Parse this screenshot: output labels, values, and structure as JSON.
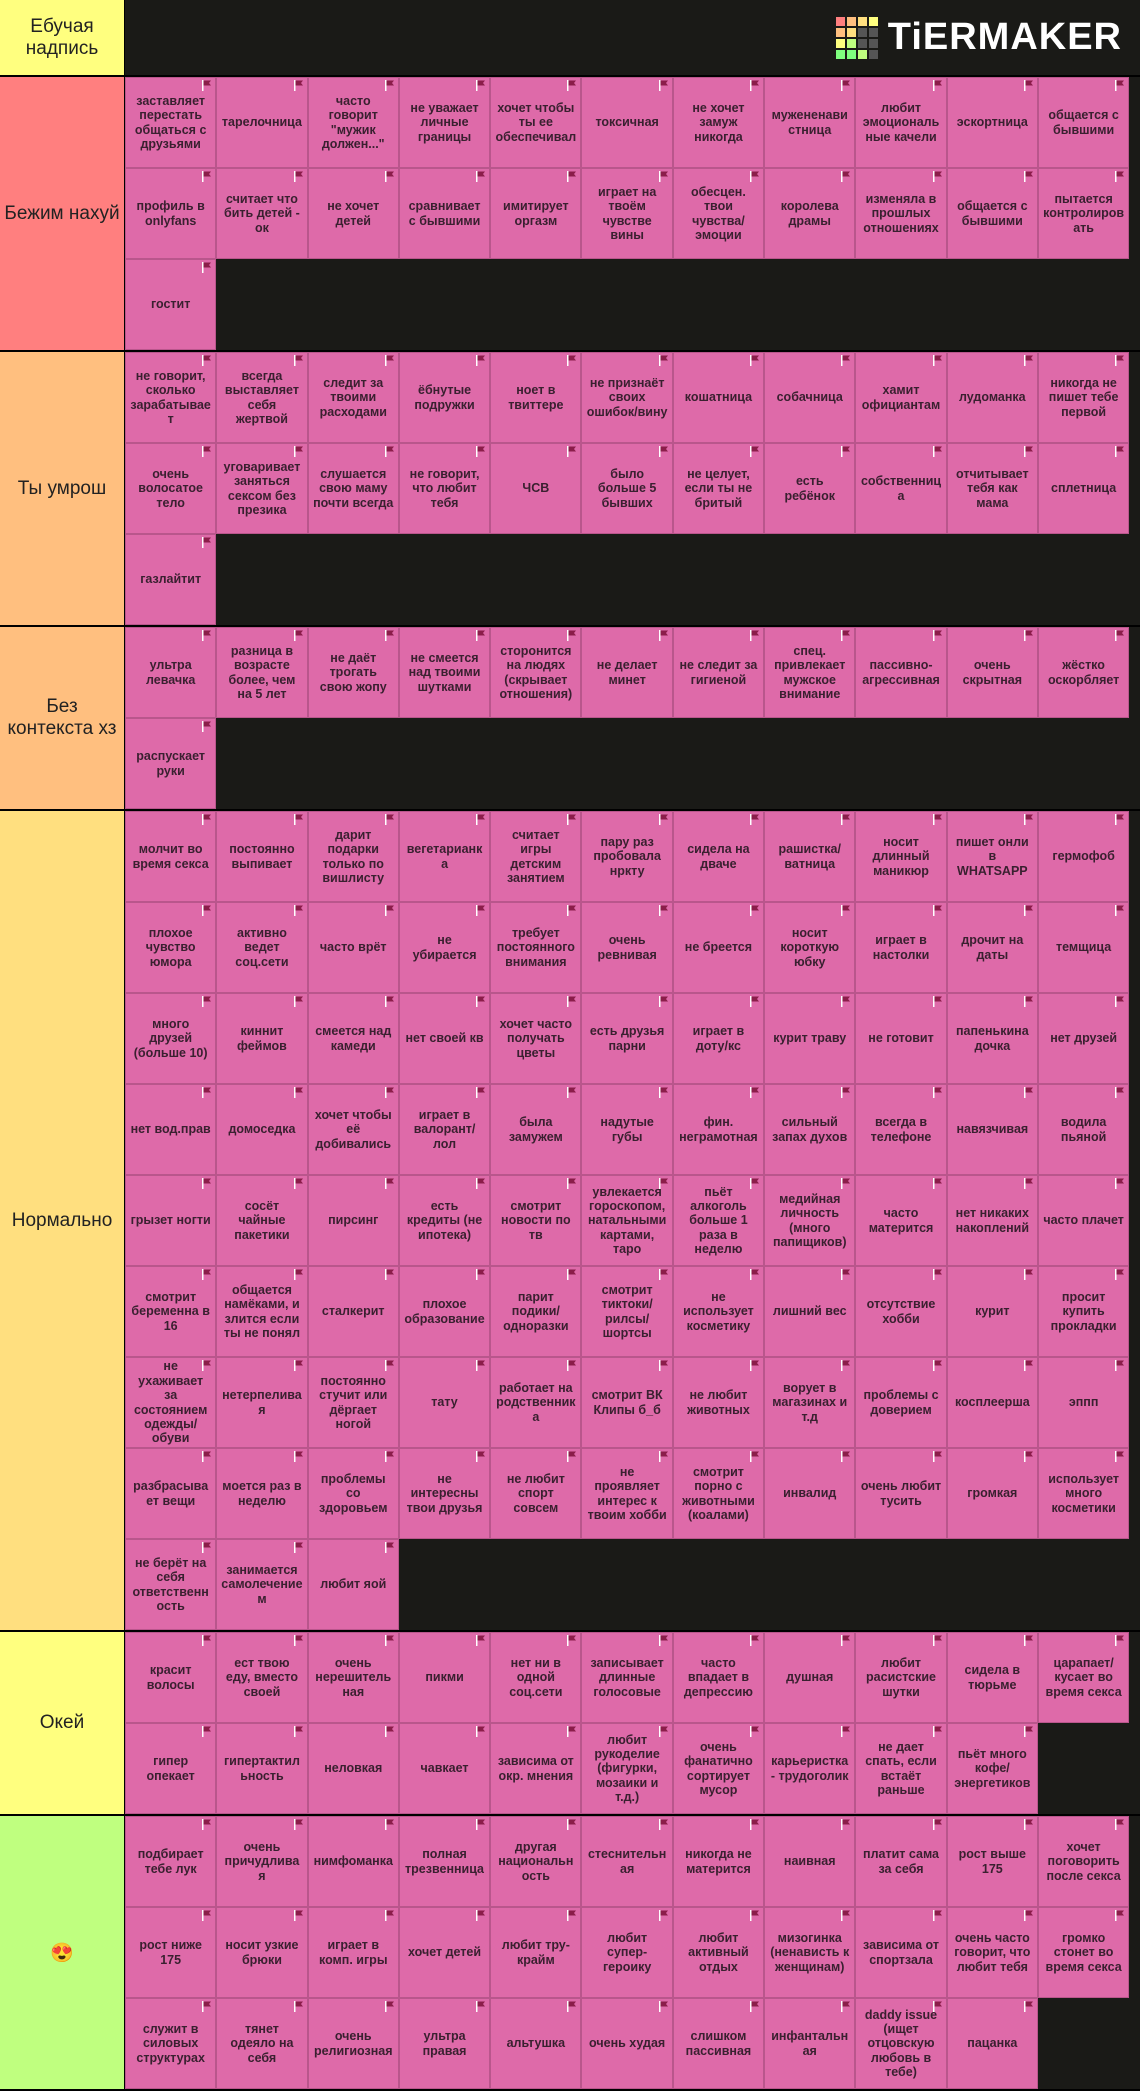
{
  "header": {
    "label": "Ебучая надпись",
    "logo": "TiERMAKER"
  },
  "tiers": [
    {
      "label": "Бежим нахуй",
      "color": "#ff7f7f",
      "items": [
        "заставляет перестать общаться с друзьями",
        "тарелочница",
        "часто говорит \"мужик должен...\"",
        "не уважает личные границы",
        "хочет чтобы ты ее обеспечивал",
        "токсичная",
        "не хочет замуж никогда",
        "мужененавистница",
        "любит эмоциональные качели",
        "эскортница",
        "общается с бывшими",
        "профиль в onlyfans",
        "считает что бить детей - ок",
        "не хочет детей",
        "сравнивает с бывшими",
        "имитирует оргазм",
        "играет на твоём чувстве вины",
        "обесцен. твои чувства/эмоции",
        "королева драмы",
        "изменяла в прошлых отношениях",
        "общается с бывшими",
        "пытается контролировать",
        "гостит"
      ]
    },
    {
      "label": "Ты умрош",
      "color": "#ffbf7f",
      "items": [
        "не говорит, сколько зарабатывает",
        "всегда выставляет себя жертвой",
        "следит за твоими расходами",
        "ёбнутые подружки",
        "ноет в твиттере",
        "не признаёт своих ошибок/вину",
        "кошатница",
        "собачница",
        "хамит официантам",
        "лудоманка",
        "никогда не пишет тебе первой",
        "очень волосатое тело",
        "уговаривает заняться сексом без презика",
        "слушается свою маму почти всегда",
        "не говорит, что любит тебя",
        "ЧСВ",
        "было больше 5 бывших",
        "не целует, если ты не бритый",
        "есть ребёнок",
        "собственница",
        "отчитывает тебя как мама",
        "сплетница",
        "газлайтит"
      ]
    },
    {
      "label": "Без контекста хз",
      "color": "#ffbf7f",
      "items": [
        "ультра левачка",
        "разница в возрасте более, чем на 5 лет",
        "не даёт трогать свою жопу",
        "не смеется над твоими шутками",
        "сторонится на людях (скрывает отношения)",
        "не делает минет",
        "не следит за гигиеной",
        "спец. привлекает мужское внимание",
        "пассивно-агрессивная",
        "очень скрытная",
        "жёстко оскорбляет",
        "распускает руки"
      ]
    },
    {
      "label": "Нормально",
      "color": "#ffdf7f",
      "items": [
        "молчит во время секса",
        "постоянно выпивает",
        "дарит подарки только по вишлисту",
        "вегетарианка",
        "считает игры детским занятием",
        "пару раз пробовала нркту",
        "сидела на дваче",
        "рашистка/ватница",
        "носит длинный маникюр",
        "пишет онли в WHATSAPP",
        "гермофоб",
        "плохое чувство юмора",
        "активно ведет соц.сети",
        "часто врёт",
        "не убирается",
        "требует постоянного внимания",
        "очень ревнивая",
        "не бреется",
        "носит короткую юбку",
        "играет в настолки",
        "дрочит на даты",
        "темщица",
        "много друзей (больше 10)",
        "киннит феймов",
        "смеется над камеди",
        "нет своей кв",
        "хочет часто получать цветы",
        "есть друзья парни",
        "играет в доту/кс",
        "курит траву",
        "не готовит",
        "папенькина дочка",
        "нет друзей",
        "нет вод.прав",
        "домоседка",
        "хочет чтобы её добивались",
        "играет в валорант/лол",
        "была замужем",
        "надутые губы",
        "фин. неграмотная",
        "сильный запах духов",
        "всегда в телефоне",
        "навязчивая",
        "водила пьяной",
        "грызет ногти",
        "сосёт чайные пакетики",
        "пирсинг",
        "есть кредиты (не ипотека)",
        "смотрит новости по тв",
        "увлекается гороскопом, натальными картами, таро",
        "пьёт алкоголь больше 1 раза в неделю",
        "медийная личность (много папищиков)",
        "часто матерится",
        "нет никаких накоплений",
        "часто плачет",
        "смотрит беременна в 16",
        "общается намёками, и злится если ты не понял",
        "сталкерит",
        "плохое образование",
        "парит подики/одноразки",
        "смотрит тиктоки/рилсы/шортсы",
        "не использует косметику",
        "лишний вес",
        "отсутствие хобби",
        "курит",
        "просит купить прокладки",
        "не ухаживает за состоянием одежды/обуви",
        "нетерпеливая",
        "постоянно стучит или дёргает ногой",
        "тату",
        "работает на родственника",
        "смотрит ВК Клипы б_б",
        "не любит животных",
        "ворует в магазинах и т.д",
        "проблемы с доверием",
        "косплеерша",
        "эппп",
        "разбрасывает вещи",
        "моется раз в неделю",
        "проблемы со здоровьем",
        "не интересны твои друзья",
        "не любит спорт совсем",
        "не проявляет интерес к твоим хобби",
        "смотрит порно с животными (коалами)",
        "инвалид",
        "очень любит тусить",
        "громкая",
        "использует много косметики",
        "не берёт на себя ответственность",
        "занимается самолечением",
        "любит яой"
      ]
    },
    {
      "label": "Окей",
      "color": "#ffff7f",
      "items": [
        "красит волосы",
        "ест твою еду, вместо своей",
        "очень нерешительная",
        "пикми",
        "нет ни в одной соц.сети",
        "записывает длинные голосовые",
        "часто впадает в депрессию",
        "душная",
        "любит расистские шутки",
        "сидела в тюрьме",
        "царапает/кусает во время секса",
        "гипер опекает",
        "гипертактильность",
        "неловкая",
        "чавкает",
        "зависима от окр. мнения",
        "любит рукоделие (фигурки, мозаики и т.д.)",
        "очень фанатично сортирует мусор",
        "карьеристка - трудоголик",
        "не дает спать, если встаёт раньше",
        "пьёт много кофе/энергетиков"
      ]
    },
    {
      "label": "😍",
      "color": "#bfff7f",
      "items": [
        "подбирает тебе лук",
        "очень причудливая",
        "нимфоманка",
        "полная трезвенница",
        "другая национальность",
        "стеснительная",
        "никогда не матерится",
        "наивная",
        "платит сама за себя",
        "рост выше 175",
        "хочет поговорить после секса",
        "рост ниже 175",
        "носит узкие брюки",
        "играет в комп. игры",
        "хочет детей",
        "любит тру-крайм",
        "любит супер-героику",
        "любит активный отдых",
        "мизогинка (ненависть к женщинам)",
        "зависима от спортзала",
        "очень часто говорит, что любит тебя",
        "громко стонет во время секса",
        "служит в силовых структурах",
        "тянет одеяло на себя",
        "очень религиозная",
        "ультра правая",
        "альтушка",
        "очень худая",
        "слишком пассивная",
        "инфантальная",
        "daddy issue (ищет отцовскую любовь в тебе)",
        "пацанка"
      ]
    }
  ]
}
